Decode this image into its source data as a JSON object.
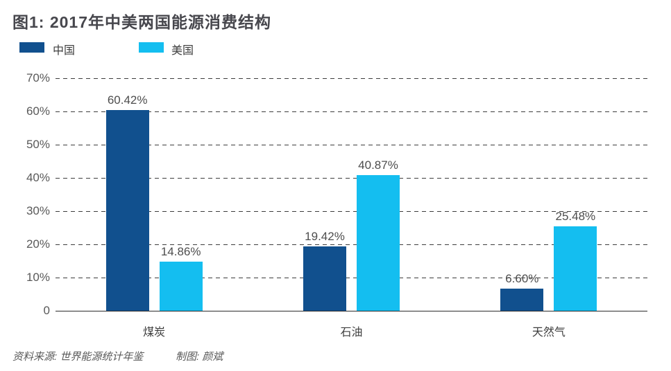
{
  "title": "图1: 2017年中美两国能源消费结构",
  "legend": {
    "china": {
      "label": "中国",
      "color": "#11508E"
    },
    "usa": {
      "label": "美国",
      "color": "#14BEF0"
    }
  },
  "footer": {
    "source": "资料来源: 世界能源统计年鉴",
    "credit": "制图: 颜斌"
  },
  "colors": {
    "china_bar": "#11508E",
    "usa_bar": "#14BEF0",
    "grid": "#3c3c3c",
    "axis": "#2b2b2b",
    "title_text": "#47474d",
    "tick_text": "#595959",
    "value_text": "#4d4d4d"
  },
  "chart_data": {
    "type": "bar",
    "title": "图1: 2017年中美两国能源消费结构",
    "categories": [
      "煤炭",
      "石油",
      "天然气"
    ],
    "series": [
      {
        "name": "中国",
        "color": "#11508E",
        "values": [
          60.42,
          19.42,
          6.6
        ],
        "labels": [
          "60.42%",
          "19.42%",
          "6.60%"
        ]
      },
      {
        "name": "美国",
        "color": "#14BEF0",
        "values": [
          14.86,
          40.87,
          25.48
        ],
        "labels": [
          "14.86%",
          "40.87%",
          "25.48%"
        ]
      }
    ],
    "xlabel": "",
    "ylabel": "",
    "ylim": [
      0,
      70
    ],
    "yticks": [
      {
        "value": 0,
        "label": "0"
      },
      {
        "value": 10,
        "label": "10%"
      },
      {
        "value": 20,
        "label": "20%"
      },
      {
        "value": 30,
        "label": "30%"
      },
      {
        "value": 40,
        "label": "40%"
      },
      {
        "value": 50,
        "label": "50%"
      },
      {
        "value": 60,
        "label": "60%"
      },
      {
        "value": 70,
        "label": "70%"
      }
    ],
    "grid": "dashed-horizontal",
    "legend_position": "top-left",
    "source_note": "资料来源: 世界能源统计年鉴",
    "credit_note": "制图: 颜斌"
  }
}
